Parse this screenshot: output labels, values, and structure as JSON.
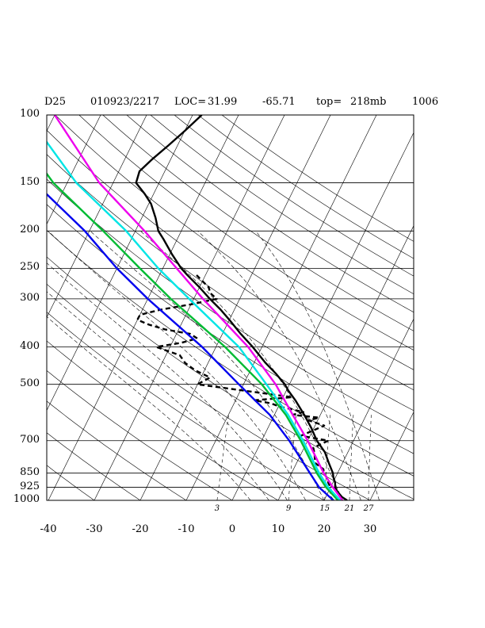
{
  "header": {
    "station": "D25",
    "datetime": "010923/2217",
    "loc_label": "LOC=",
    "lat": "31.99",
    "lon": "-65.71",
    "top_label": "top=",
    "top_value": "218mb",
    "count": "1006"
  },
  "chart_data": {
    "type": "line",
    "subtype": "skew-T log-P sounding",
    "xlabel": "",
    "ylabel": "",
    "pressure_ticks": [
      "100",
      "150",
      "200",
      "250",
      "300",
      "400",
      "500",
      "700",
      "850",
      "925",
      "1000"
    ],
    "pressure_values": [
      100,
      150,
      200,
      250,
      300,
      400,
      500,
      700,
      850,
      925,
      1000
    ],
    "temperature_ticks": [
      "-40",
      "-30",
      "-20",
      "-10",
      "0",
      "10",
      "20",
      "30"
    ],
    "temperature_values": [
      -40,
      -30,
      -20,
      -10,
      0,
      10,
      20,
      30
    ],
    "mixing_ratio_labels": [
      "3",
      "9",
      "15",
      "21",
      "27"
    ],
    "xlim": [
      -40,
      40
    ],
    "ylim": [
      1000,
      100
    ],
    "log_y": true,
    "grid": true,
    "series": [
      {
        "color": "#000000",
        "style": "solid",
        "points": [
          [
            1000,
            25
          ],
          [
            980,
            23.5
          ],
          [
            950,
            22
          ],
          [
            925,
            21
          ],
          [
            900,
            20.5
          ],
          [
            870,
            19.5
          ],
          [
            850,
            19
          ],
          [
            800,
            17
          ],
          [
            750,
            15
          ],
          [
            700,
            12
          ],
          [
            650,
            9.5
          ],
          [
            600,
            6.5
          ],
          [
            550,
            3
          ],
          [
            520,
            0.5
          ],
          [
            500,
            -1
          ],
          [
            470,
            -4
          ],
          [
            440,
            -7.5
          ],
          [
            400,
            -12
          ],
          [
            370,
            -16
          ],
          [
            340,
            -20
          ],
          [
            320,
            -23
          ],
          [
            300,
            -26.5
          ],
          [
            280,
            -30
          ],
          [
            260,
            -34
          ],
          [
            250,
            -36
          ],
          [
            230,
            -39.5
          ],
          [
            210,
            -43
          ],
          [
            200,
            -45
          ],
          [
            185,
            -47
          ],
          [
            170,
            -49.5
          ],
          [
            160,
            -52
          ],
          [
            150,
            -55
          ],
          [
            140,
            -55.5
          ],
          [
            130,
            -54
          ],
          [
            120,
            -52
          ],
          [
            110,
            -50
          ],
          [
            100,
            -48
          ]
        ]
      },
      {
        "color": "#000000",
        "style": "dashed",
        "points": [
          [
            1000,
            22
          ],
          [
            980,
            21
          ],
          [
            950,
            20.5
          ],
          [
            925,
            20
          ],
          [
            900,
            19
          ],
          [
            870,
            18
          ],
          [
            850,
            17
          ],
          [
            830,
            16.5
          ],
          [
            800,
            14
          ],
          [
            760,
            13
          ],
          [
            730,
            12
          ],
          [
            700,
            14.5
          ],
          [
            680,
            8
          ],
          [
            660,
            10
          ],
          [
            640,
            12
          ],
          [
            620,
            8
          ],
          [
            610,
            10
          ],
          [
            600,
            4
          ],
          [
            590,
            6
          ],
          [
            570,
            0
          ],
          [
            560,
            -2
          ],
          [
            550,
            -6
          ],
          [
            540,
            2
          ],
          [
            525,
            -6
          ],
          [
            500,
            -20
          ],
          [
            480,
            -18
          ],
          [
            460,
            -22
          ],
          [
            440,
            -25
          ],
          [
            420,
            -27
          ],
          [
            400,
            -33
          ],
          [
            390,
            -28
          ],
          [
            380,
            -25
          ],
          [
            370,
            -27
          ],
          [
            360,
            -33
          ],
          [
            350,
            -37
          ],
          [
            340,
            -40
          ],
          [
            330,
            -40
          ],
          [
            320,
            -36
          ],
          [
            310,
            -30
          ],
          [
            300,
            -25
          ],
          [
            290,
            -27
          ],
          [
            280,
            -28
          ],
          [
            270,
            -30
          ],
          [
            260,
            -32
          ]
        ]
      },
      {
        "color": "#0000ee",
        "style": "solid",
        "points": [
          [
            1000,
            22
          ],
          [
            925,
            17.5
          ],
          [
            850,
            14
          ],
          [
            700,
            6
          ],
          [
            600,
            -1
          ],
          [
            500,
            -11
          ],
          [
            400,
            -23
          ],
          [
            300,
            -40
          ],
          [
            250,
            -50
          ],
          [
            200,
            -61
          ],
          [
            150,
            -77
          ],
          [
            100,
            -93
          ]
        ]
      },
      {
        "color": "#00bb33",
        "style": "solid",
        "points": [
          [
            1000,
            23
          ],
          [
            925,
            19
          ],
          [
            850,
            15.5
          ],
          [
            700,
            8.5
          ],
          [
            600,
            2.5
          ],
          [
            500,
            -6
          ],
          [
            400,
            -18
          ],
          [
            300,
            -35
          ],
          [
            250,
            -45
          ],
          [
            200,
            -57
          ],
          [
            150,
            -73
          ],
          [
            100,
            -91
          ]
        ]
      },
      {
        "color": "#00e5e5",
        "style": "solid",
        "points": [
          [
            1000,
            23.5
          ],
          [
            925,
            19.5
          ],
          [
            850,
            16
          ],
          [
            700,
            9
          ],
          [
            600,
            3
          ],
          [
            500,
            -5
          ],
          [
            400,
            -15
          ],
          [
            300,
            -31
          ],
          [
            250,
            -41
          ],
          [
            200,
            -52
          ],
          [
            150,
            -68
          ],
          [
            100,
            -86
          ]
        ]
      },
      {
        "color": "#ee00ee",
        "style": "solid",
        "points": [
          [
            1000,
            24
          ],
          [
            925,
            20.5
          ],
          [
            850,
            17
          ],
          [
            700,
            10
          ],
          [
            600,
            4
          ],
          [
            500,
            -3
          ],
          [
            400,
            -13
          ],
          [
            300,
            -28
          ],
          [
            250,
            -37
          ],
          [
            200,
            -48
          ],
          [
            150,
            -63
          ],
          [
            100,
            -80
          ]
        ]
      }
    ]
  }
}
